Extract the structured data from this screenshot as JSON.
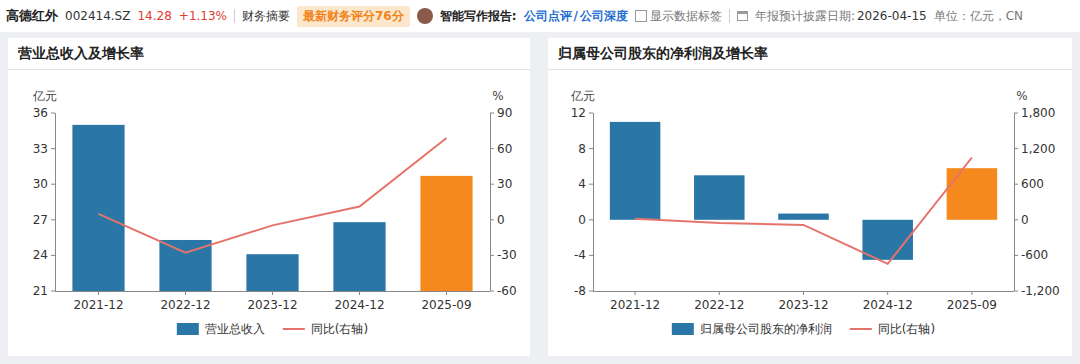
{
  "header": {
    "name": "高德红外",
    "code": "002414.SZ",
    "price": "14.28",
    "change": "+1.13%",
    "tab": "财务摘要",
    "score_badge": "最新财务评分76分",
    "report_label": "智能写作报告:",
    "report_links": [
      "公司点评",
      "/",
      "公司深度"
    ],
    "checkbox_label": "显示数据标签",
    "disclosure_label": "年报预计披露日期:",
    "disclosure_date": "2026-04-15",
    "unit": "单位：亿元，CN"
  },
  "chart_data": [
    {
      "type": "bar",
      "title": "营业总收入及增长率",
      "y_label": "亿元",
      "y2_label": "%",
      "categories": [
        "2021-12",
        "2022-12",
        "2023-12",
        "2024-12",
        "2025-09"
      ],
      "series": [
        {
          "name": "营业总收入",
          "type": "bar",
          "colors": [
            "#2a77a7",
            "#2a77a7",
            "#2a77a7",
            "#2a77a7",
            "#f5891e"
          ],
          "values": [
            35.0,
            25.3,
            24.1,
            26.8,
            30.7
          ]
        },
        {
          "name": "同比(右轴)",
          "type": "line",
          "color": "#e5736a",
          "axis": "y2",
          "values": [
            5,
            -27.7,
            -4.7,
            11.2,
            69
          ]
        }
      ],
      "ylim": [
        21,
        36
      ],
      "yticks": [
        21,
        24,
        27,
        30,
        33,
        36
      ],
      "y2lim": [
        -60,
        90
      ],
      "y2ticks": [
        -60,
        -30,
        0,
        30,
        60,
        90
      ],
      "grid": false,
      "legend": "bottom"
    },
    {
      "type": "bar",
      "title": "归属母公司股东的净利润及增长率",
      "y_label": "亿元",
      "y2_label": "%",
      "categories": [
        "2021-12",
        "2022-12",
        "2023-12",
        "2024-12",
        "2025-09"
      ],
      "series": [
        {
          "name": "归属母公司股东的净利润",
          "type": "bar",
          "colors": [
            "#2a77a7",
            "#2a77a7",
            "#2a77a7",
            "#2a77a7",
            "#f5891e"
          ],
          "values": [
            11.0,
            5.0,
            0.7,
            -4.5,
            5.8
          ]
        },
        {
          "name": "同比(右轴)",
          "type": "line",
          "color": "#e5736a",
          "axis": "y2",
          "values": [
            17,
            -55,
            -86,
            -743,
            1050
          ]
        }
      ],
      "ylim": [
        -8,
        12
      ],
      "yticks": [
        -8,
        -4,
        0,
        4,
        8,
        12
      ],
      "y2lim": [
        -1200,
        1800
      ],
      "y2ticks": [
        {
          "value": -1200,
          "label": "-1,200"
        },
        -600,
        0,
        600,
        {
          "value": 1200,
          "label": "1,200"
        },
        {
          "value": 1800,
          "label": "1,800"
        }
      ],
      "grid": false,
      "legend": "bottom"
    }
  ]
}
